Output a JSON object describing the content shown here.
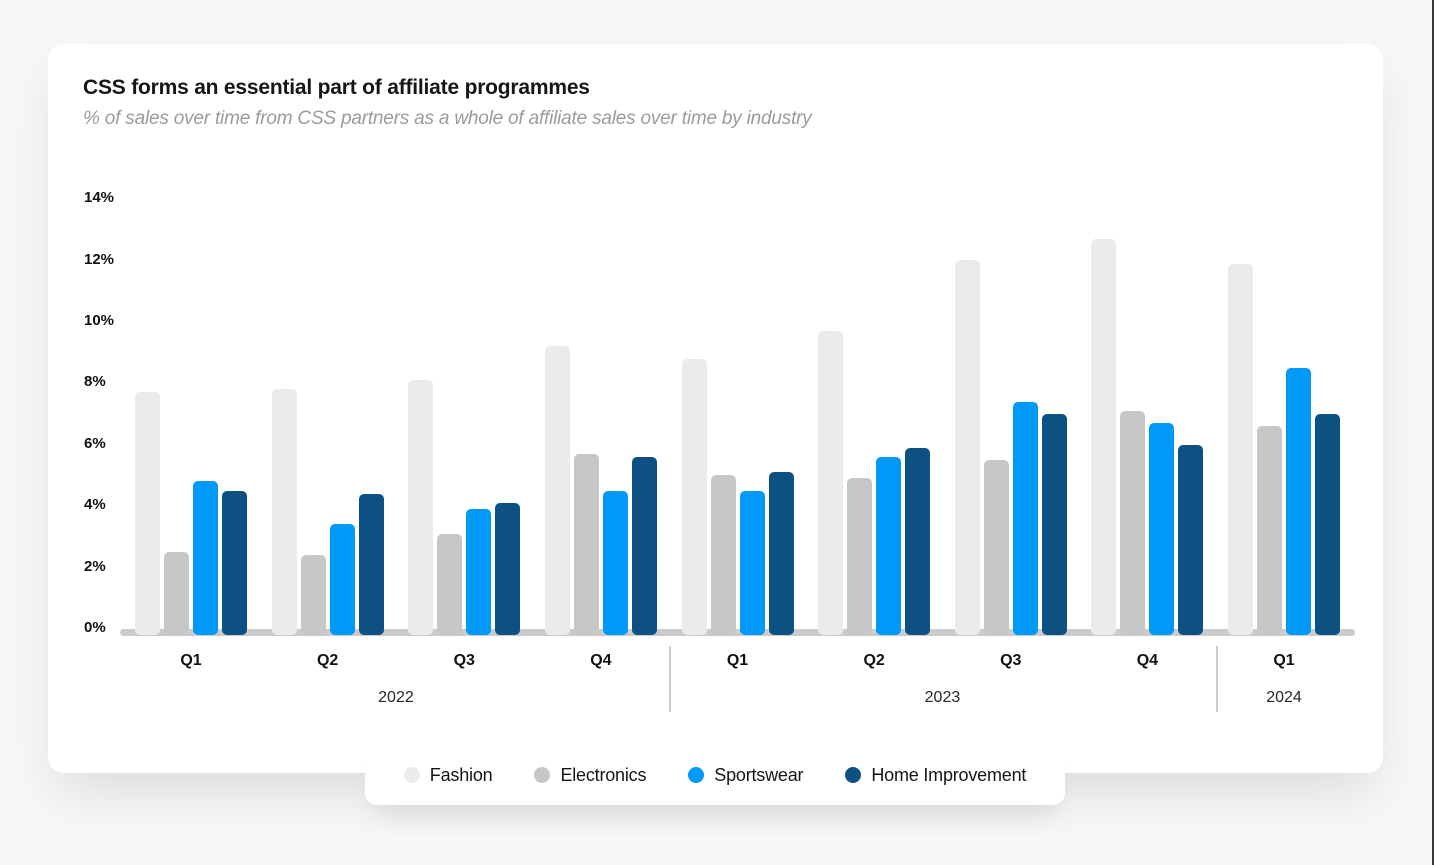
{
  "header": {
    "title": "CSS forms an essential part of affiliate programmes",
    "subtitle": "% of sales over time from CSS partners as a whole of affiliate sales over time by industry"
  },
  "chart_data": {
    "type": "bar",
    "title": "CSS forms an essential part of affiliate programmes",
    "subtitle": "% of sales over time from CSS partners as a whole of affiliate sales over time by industry",
    "categories": [
      "Q1",
      "Q2",
      "Q3",
      "Q4",
      "Q1",
      "Q2",
      "Q3",
      "Q4",
      "Q1"
    ],
    "year_groups": [
      {
        "label": "2022",
        "span": 4
      },
      {
        "label": "2023",
        "span": 4
      },
      {
        "label": "2024",
        "span": 1
      }
    ],
    "series": [
      {
        "name": "Fashion",
        "color": "#ebebeb",
        "values": [
          7.9,
          8.0,
          8.3,
          9.4,
          9.0,
          9.9,
          12.2,
          12.9,
          12.1
        ]
      },
      {
        "name": "Electronics",
        "color": "#c6c6c6",
        "values": [
          2.7,
          2.6,
          3.3,
          5.9,
          5.2,
          5.1,
          5.7,
          7.3,
          6.8
        ]
      },
      {
        "name": "Sportswear",
        "color": "#0099f7",
        "values": [
          5.0,
          3.6,
          4.1,
          4.7,
          4.7,
          5.8,
          7.6,
          6.9,
          8.7
        ]
      },
      {
        "name": "Home Improvement",
        "color": "#0c5181",
        "values": [
          4.7,
          4.6,
          4.3,
          5.8,
          5.3,
          6.1,
          7.2,
          6.2,
          7.2
        ]
      }
    ],
    "ylim": [
      0,
      14
    ],
    "yticks": [
      0,
      2,
      4,
      6,
      8,
      10,
      12,
      14
    ],
    "ytick_suffix": "%",
    "xlabel": "",
    "ylabel": "",
    "grid": false,
    "legend_position": "bottom"
  }
}
